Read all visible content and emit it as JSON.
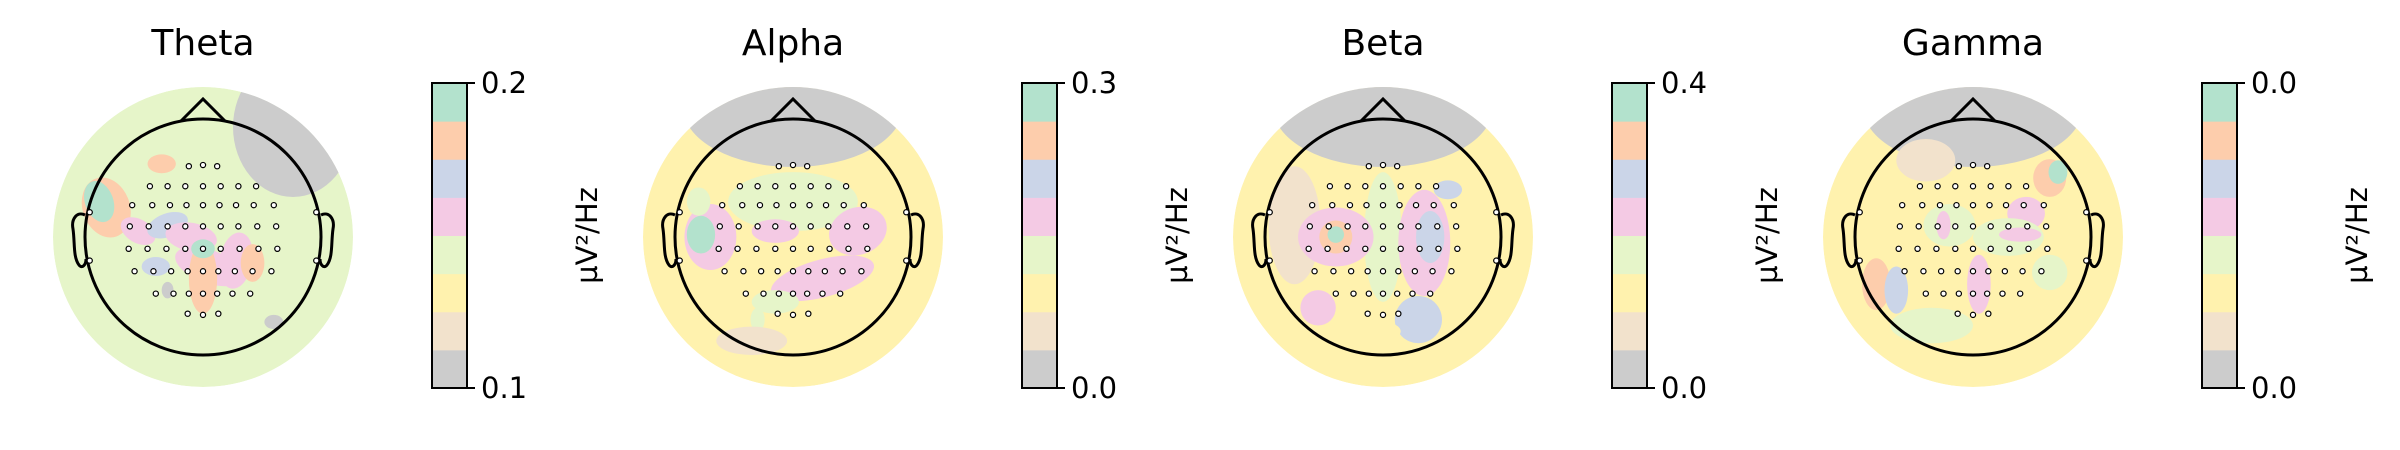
{
  "chart_data": {
    "type": "heatmap",
    "subtype": "eeg-topomap",
    "colormap": [
      "#cccccc",
      "#f2e2cc",
      "#fff2ae",
      "#e6f5c9",
      "#f4cae4",
      "#cbd5e8",
      "#fdcdac",
      "#b3e2cd"
    ],
    "sensor_layout": [
      [
        -0.12,
        0.6
      ],
      [
        0.0,
        0.61
      ],
      [
        0.12,
        0.6
      ],
      [
        -0.45,
        0.43
      ],
      [
        -0.3,
        0.43
      ],
      [
        -0.15,
        0.43
      ],
      [
        0.0,
        0.43
      ],
      [
        0.15,
        0.43
      ],
      [
        0.3,
        0.43
      ],
      [
        0.45,
        0.43
      ],
      [
        -0.6,
        0.27
      ],
      [
        -0.43,
        0.27
      ],
      [
        -0.28,
        0.27
      ],
      [
        -0.14,
        0.27
      ],
      [
        0.0,
        0.27
      ],
      [
        0.14,
        0.27
      ],
      [
        0.28,
        0.27
      ],
      [
        0.43,
        0.27
      ],
      [
        0.6,
        0.27
      ],
      [
        -0.62,
        0.09
      ],
      [
        -0.46,
        0.09
      ],
      [
        -0.3,
        0.09
      ],
      [
        -0.15,
        0.09
      ],
      [
        0.0,
        0.09
      ],
      [
        0.15,
        0.09
      ],
      [
        0.3,
        0.09
      ],
      [
        0.46,
        0.09
      ],
      [
        0.62,
        0.09
      ],
      [
        -0.63,
        -0.1
      ],
      [
        -0.47,
        -0.1
      ],
      [
        -0.31,
        -0.1
      ],
      [
        -0.15,
        -0.1
      ],
      [
        0.0,
        -0.1
      ],
      [
        0.15,
        -0.1
      ],
      [
        0.31,
        -0.1
      ],
      [
        0.47,
        -0.1
      ],
      [
        0.63,
        -0.1
      ],
      [
        -0.58,
        -0.29
      ],
      [
        -0.42,
        -0.29
      ],
      [
        -0.27,
        -0.29
      ],
      [
        -0.13,
        -0.29
      ],
      [
        0.0,
        -0.29
      ],
      [
        0.13,
        -0.29
      ],
      [
        0.27,
        -0.29
      ],
      [
        0.42,
        -0.29
      ],
      [
        0.58,
        -0.29
      ],
      [
        -0.4,
        -0.48
      ],
      [
        -0.25,
        -0.48
      ],
      [
        -0.12,
        -0.48
      ],
      [
        0.0,
        -0.48
      ],
      [
        0.12,
        -0.48
      ],
      [
        0.25,
        -0.48
      ],
      [
        0.4,
        -0.48
      ],
      [
        -0.13,
        -0.65
      ],
      [
        0.0,
        -0.66
      ],
      [
        0.13,
        -0.65
      ],
      [
        -0.96,
        0.21
      ],
      [
        0.96,
        0.21
      ],
      [
        -0.96,
        -0.2
      ],
      [
        0.96,
        -0.2
      ]
    ],
    "panels": [
      {
        "title": "Theta",
        "colorbar": {
          "label": "µV²/Hz",
          "ticks": [
            "0.2",
            "0.1"
          ]
        },
        "bands": [
          {
            "level": 6,
            "x": -0.82,
            "y": 0.25,
            "rx": 0.2,
            "ry": 0.26,
            "rot": -20
          },
          {
            "level": 7,
            "x": -0.88,
            "y": 0.3,
            "rx": 0.12,
            "ry": 0.18,
            "rot": -20
          },
          {
            "level": 6,
            "x": -0.35,
            "y": 0.62,
            "rx": 0.12,
            "ry": 0.08,
            "rot": 0
          },
          {
            "level": 4,
            "x": -0.55,
            "y": 0.05,
            "rx": 0.16,
            "ry": 0.1,
            "rot": 30
          },
          {
            "level": 5,
            "x": -0.3,
            "y": 0.1,
            "rx": 0.18,
            "ry": 0.1,
            "rot": -20
          },
          {
            "level": 4,
            "x": -0.1,
            "y": 0.0,
            "rx": 0.22,
            "ry": 0.12,
            "rot": 10
          },
          {
            "level": 4,
            "x": 0.05,
            "y": -0.25,
            "rx": 0.3,
            "ry": 0.14,
            "rot": 20
          },
          {
            "level": 6,
            "x": 0.0,
            "y": -0.35,
            "rx": 0.12,
            "ry": 0.3,
            "rot": 0
          },
          {
            "level": 4,
            "x": 0.28,
            "y": -0.2,
            "rx": 0.14,
            "ry": 0.24,
            "rot": 10
          },
          {
            "level": 6,
            "x": 0.42,
            "y": -0.22,
            "rx": 0.1,
            "ry": 0.16,
            "rot": 0
          },
          {
            "level": 7,
            "x": 0.0,
            "y": -0.1,
            "rx": 0.1,
            "ry": 0.08,
            "rot": 0
          },
          {
            "level": 5,
            "x": -0.4,
            "y": -0.25,
            "rx": 0.12,
            "ry": 0.08,
            "rot": 0
          },
          {
            "level": 3,
            "x": 0.3,
            "y": 0.35,
            "rx": 0.22,
            "ry": 0.1,
            "rot": 0
          },
          {
            "level": 0,
            "x": -0.3,
            "y": -0.45,
            "rx": 0.05,
            "ry": 0.07,
            "rot": 0
          },
          {
            "level": 0,
            "x": 0.6,
            "y": -0.72,
            "rx": 0.08,
            "ry": 0.06,
            "rot": 0
          }
        ]
      },
      {
        "title": "Alpha",
        "colorbar": {
          "label": "µV²/Hz",
          "ticks": [
            "0.3",
            "0.0"
          ]
        },
        "bands": [
          {
            "level": 3,
            "x": 0.0,
            "y": 0.3,
            "rx": 0.55,
            "ry": 0.25,
            "rot": 0
          },
          {
            "level": 4,
            "x": -0.7,
            "y": 0.0,
            "rx": 0.22,
            "ry": 0.28,
            "rot": 0
          },
          {
            "level": 7,
            "x": -0.78,
            "y": 0.02,
            "rx": 0.12,
            "ry": 0.16,
            "rot": 0
          },
          {
            "level": 3,
            "x": -0.8,
            "y": 0.3,
            "rx": 0.1,
            "ry": 0.12,
            "rot": 0
          },
          {
            "level": 4,
            "x": 0.25,
            "y": -0.35,
            "rx": 0.45,
            "ry": 0.16,
            "rot": -15
          },
          {
            "level": 4,
            "x": 0.55,
            "y": 0.05,
            "rx": 0.25,
            "ry": 0.2,
            "rot": -20
          },
          {
            "level": 4,
            "x": -0.15,
            "y": 0.05,
            "rx": 0.2,
            "ry": 0.1,
            "rot": 0
          },
          {
            "level": 3,
            "x": -0.15,
            "y": -0.55,
            "rx": 0.2,
            "ry": 0.1,
            "rot": 0
          },
          {
            "level": 3,
            "x": -0.3,
            "y": -0.7,
            "rx": 0.06,
            "ry": 0.1,
            "rot": 0
          },
          {
            "level": 1,
            "x": -0.35,
            "y": -0.88,
            "rx": 0.3,
            "ry": 0.12,
            "rot": 0
          }
        ]
      },
      {
        "title": "Beta",
        "colorbar": {
          "label": "µV²/Hz",
          "ticks": [
            "0.4",
            "0.0"
          ]
        },
        "bands": [
          {
            "level": 1,
            "x": -0.75,
            "y": 0.1,
            "rx": 0.22,
            "ry": 0.5,
            "rot": 0
          },
          {
            "level": 3,
            "x": 0.0,
            "y": 0.0,
            "rx": 0.16,
            "ry": 0.55,
            "rot": 0
          },
          {
            "level": 4,
            "x": -0.4,
            "y": 0.0,
            "rx": 0.32,
            "ry": 0.25,
            "rot": 0
          },
          {
            "level": 6,
            "x": -0.4,
            "y": 0.0,
            "rx": 0.14,
            "ry": 0.14,
            "rot": 0
          },
          {
            "level": 7,
            "x": -0.4,
            "y": 0.02,
            "rx": 0.07,
            "ry": 0.07,
            "rot": 0
          },
          {
            "level": 4,
            "x": 0.35,
            "y": -0.05,
            "rx": 0.22,
            "ry": 0.45,
            "rot": 0
          },
          {
            "level": 5,
            "x": 0.4,
            "y": 0.0,
            "rx": 0.12,
            "ry": 0.22,
            "rot": 0
          },
          {
            "level": 5,
            "x": 0.3,
            "y": -0.7,
            "rx": 0.2,
            "ry": 0.2,
            "rot": 0
          },
          {
            "level": 4,
            "x": -0.55,
            "y": -0.6,
            "rx": 0.15,
            "ry": 0.15,
            "rot": 0
          },
          {
            "level": 5,
            "x": 0.55,
            "y": 0.4,
            "rx": 0.12,
            "ry": 0.08,
            "rot": 0
          },
          {
            "level": 2,
            "x": -0.1,
            "y": -0.8,
            "rx": 0.25,
            "ry": 0.1,
            "rot": 0
          }
        ]
      },
      {
        "title": "Gamma",
        "colorbar": {
          "label": "µV²/Hz",
          "ticks": [
            "0.0",
            "0.0"
          ]
        },
        "bands": [
          {
            "level": 1,
            "x": -0.4,
            "y": 0.65,
            "rx": 0.25,
            "ry": 0.18,
            "rot": 0
          },
          {
            "level": 6,
            "x": 0.65,
            "y": 0.5,
            "rx": 0.14,
            "ry": 0.16,
            "rot": 0
          },
          {
            "level": 7,
            "x": 0.72,
            "y": 0.55,
            "rx": 0.08,
            "ry": 0.1,
            "rot": 0
          },
          {
            "level": 4,
            "x": 0.45,
            "y": 0.2,
            "rx": 0.16,
            "ry": 0.14,
            "rot": 0
          },
          {
            "level": 3,
            "x": 0.3,
            "y": 0.0,
            "rx": 0.3,
            "ry": 0.16,
            "rot": 0
          },
          {
            "level": 4,
            "x": 0.4,
            "y": 0.02,
            "rx": 0.18,
            "ry": 0.06,
            "rot": 0
          },
          {
            "level": 3,
            "x": -0.2,
            "y": 0.1,
            "rx": 0.22,
            "ry": 0.18,
            "rot": 0
          },
          {
            "level": 4,
            "x": -0.25,
            "y": 0.1,
            "rx": 0.06,
            "ry": 0.12,
            "rot": 0
          },
          {
            "level": 4,
            "x": 0.05,
            "y": -0.4,
            "rx": 0.1,
            "ry": 0.25,
            "rot": 0
          },
          {
            "level": 6,
            "x": -0.82,
            "y": -0.4,
            "rx": 0.12,
            "ry": 0.22,
            "rot": 0
          },
          {
            "level": 5,
            "x": -0.65,
            "y": -0.45,
            "rx": 0.1,
            "ry": 0.2,
            "rot": 0
          },
          {
            "level": 3,
            "x": -0.35,
            "y": -0.75,
            "rx": 0.35,
            "ry": 0.15,
            "rot": 0
          },
          {
            "level": 3,
            "x": 0.65,
            "y": -0.3,
            "rx": 0.15,
            "ry": 0.15,
            "rot": 0
          }
        ]
      }
    ]
  }
}
